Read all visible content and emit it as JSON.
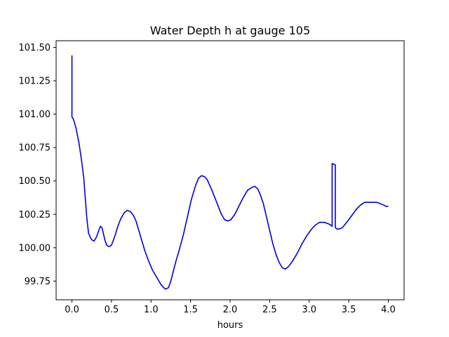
{
  "chart_data": {
    "type": "line",
    "title": "Water Depth h at gauge 105",
    "xlabel": "hours",
    "ylabel": "",
    "xlim": [
      -0.2,
      4.2
    ],
    "ylim": [
      99.61,
      101.55
    ],
    "xticks": [
      0.0,
      0.5,
      1.0,
      1.5,
      2.0,
      2.5,
      3.0,
      3.5,
      4.0
    ],
    "xtick_labels": [
      "0.0",
      "0.5",
      "1.0",
      "1.5",
      "2.0",
      "2.5",
      "3.0",
      "3.5",
      "4.0"
    ],
    "yticks": [
      99.75,
      100.0,
      100.25,
      100.5,
      100.75,
      101.0,
      101.25,
      101.5
    ],
    "ytick_labels": [
      "99.75",
      "100.00",
      "100.25",
      "100.50",
      "100.75",
      "101.00",
      "101.25",
      "101.50"
    ],
    "grid": false,
    "series": [
      {
        "color": "#0000dd",
        "x": [
          0.0,
          0.0,
          0.0,
          0.02,
          0.05,
          0.09,
          0.12,
          0.15,
          0.17,
          0.19,
          0.21,
          0.23,
          0.25,
          0.28,
          0.31,
          0.34,
          0.36,
          0.38,
          0.4,
          0.42,
          0.44,
          0.46,
          0.48,
          0.5,
          0.52,
          0.55,
          0.58,
          0.62,
          0.66,
          0.7,
          0.74,
          0.78,
          0.81,
          0.84,
          0.88,
          0.92,
          0.97,
          1.02,
          1.08,
          1.13,
          1.18,
          1.22,
          1.25,
          1.28,
          1.32,
          1.36,
          1.41,
          1.46,
          1.51,
          1.56,
          1.6,
          1.64,
          1.68,
          1.71,
          1.74,
          1.77,
          1.81,
          1.85,
          1.89,
          1.93,
          1.97,
          2.01,
          2.06,
          2.11,
          2.17,
          2.22,
          2.27,
          2.31,
          2.35,
          2.38,
          2.42,
          2.46,
          2.5,
          2.54,
          2.58,
          2.62,
          2.66,
          2.7,
          2.74,
          2.79,
          2.85,
          2.91,
          2.97,
          3.03,
          3.08,
          3.13,
          3.19,
          3.24,
          3.27,
          3.29,
          3.29,
          3.33,
          3.33,
          3.35,
          3.38,
          3.42,
          3.46,
          3.5,
          3.55,
          3.6,
          3.65,
          3.7,
          3.75,
          3.8,
          3.85,
          3.9,
          3.94,
          3.97,
          4.0
        ],
        "y": [
          101.44,
          100.98,
          100.98,
          100.96,
          100.9,
          100.78,
          100.66,
          100.52,
          100.36,
          100.21,
          100.11,
          100.08,
          100.06,
          100.05,
          100.08,
          100.13,
          100.16,
          100.15,
          100.1,
          100.05,
          100.02,
          100.01,
          100.01,
          100.02,
          100.05,
          100.1,
          100.16,
          100.22,
          100.26,
          100.28,
          100.27,
          100.24,
          100.2,
          100.14,
          100.06,
          99.98,
          99.9,
          99.83,
          99.77,
          99.72,
          99.69,
          99.7,
          99.75,
          99.82,
          99.91,
          99.99,
          100.1,
          100.23,
          100.36,
          100.46,
          100.52,
          100.54,
          100.53,
          100.51,
          100.47,
          100.43,
          100.37,
          100.31,
          100.25,
          100.21,
          100.2,
          100.21,
          100.25,
          100.31,
          100.38,
          100.43,
          100.45,
          100.46,
          100.44,
          100.4,
          100.33,
          100.23,
          100.13,
          100.03,
          99.95,
          99.89,
          99.85,
          99.84,
          99.86,
          99.9,
          99.96,
          100.03,
          100.09,
          100.14,
          100.17,
          100.19,
          100.19,
          100.18,
          100.17,
          100.16,
          100.63,
          100.62,
          100.15,
          100.14,
          100.14,
          100.15,
          100.18,
          100.21,
          100.25,
          100.29,
          100.32,
          100.34,
          100.34,
          100.34,
          100.34,
          100.33,
          100.32,
          100.31,
          100.31
        ]
      }
    ]
  }
}
